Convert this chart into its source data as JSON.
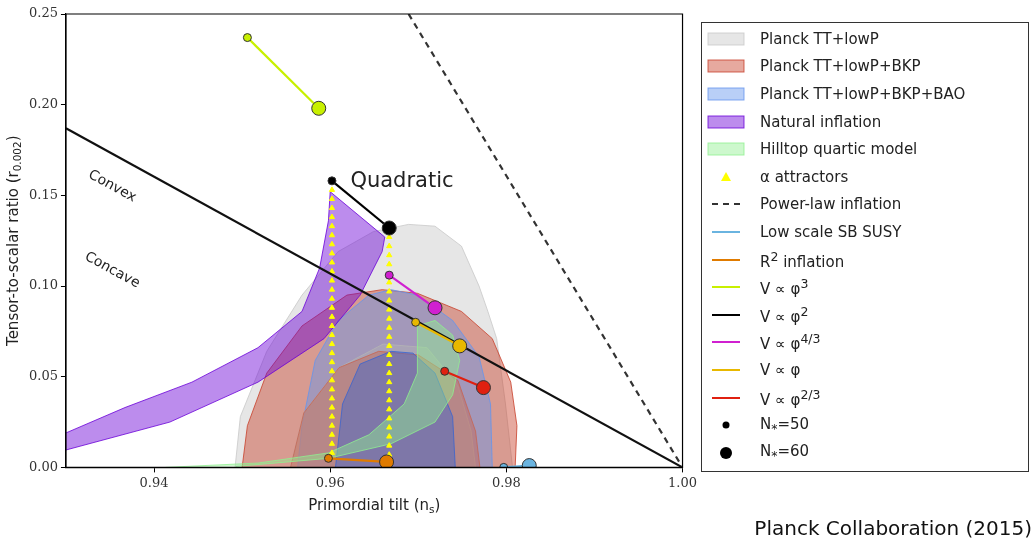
{
  "chart_data": {
    "type": "line",
    "xlabel": "Primordial tilt (n$_{s}$)",
    "ylabel": "Tensor-to-scalar ratio (r$_{0.002}$)",
    "xlim": [
      0.93,
      1.0
    ],
    "xticks": [
      {
        "value": 0.94,
        "label": "0.94"
      },
      {
        "value": 0.96,
        "label": "0.96"
      },
      {
        "value": 0.98,
        "label": "0.98"
      },
      {
        "value": 1.0,
        "label": "1.00"
      }
    ],
    "ylim": [
      0,
      0.25
    ],
    "yticks": [
      {
        "value": 0,
        "label": "0.00"
      },
      {
        "value": 0.05,
        "label": "0.05"
      },
      {
        "value": 0.1,
        "label": "0.10"
      },
      {
        "value": 0.15,
        "label": "0.15"
      },
      {
        "value": 0.2,
        "label": "0.20"
      },
      {
        "value": 0.25,
        "label": "0.25"
      }
    ],
    "grid": false,
    "legend": "right",
    "annotations": [
      "Convex",
      "Concave",
      "Quadratic",
      "N$_{*}$=50",
      "N$_{*}$=60",
      "Planck Collaboration (2015)"
    ],
    "series": [
      {
        "name": "Planck TT+lowP",
        "type": "area",
        "color": "#c8c8c8",
        "x": [
          0.9492,
          0.9498,
          0.9528,
          0.9568,
          0.9609,
          0.9649,
          0.9689,
          0.9719,
          0.9749,
          0.9769,
          0.9779,
          0.9789,
          0.9799,
          0.9807
        ],
        "values": [
          0,
          0.028,
          0.064,
          0.095,
          0.119,
          0.13,
          0.134,
          0.133,
          0.122,
          0.1,
          0.086,
          0.071,
          0.035,
          0
        ]
      },
      {
        "name": "Planck TT+lowP+BKP",
        "type": "area",
        "color": "#c8402a",
        "x": [
          0.95,
          0.9506,
          0.9528,
          0.9568,
          0.9619,
          0.9659,
          0.9699,
          0.9749,
          0.9784,
          0.9805,
          0.9812,
          0.981
        ],
        "values": [
          0,
          0.023,
          0.052,
          0.078,
          0.095,
          0.098,
          0.096,
          0.086,
          0.071,
          0.047,
          0.023,
          0
        ]
      },
      {
        "name": "Planck TT+lowP+BKP+BAO",
        "type": "area",
        "color": "#6495ed",
        "x": [
          0.9563,
          0.9568,
          0.9583,
          0.9609,
          0.9644,
          0.9669,
          0.9699,
          0.9739,
          0.9769,
          0.9782,
          0.9784
        ],
        "values": [
          0,
          0.023,
          0.059,
          0.081,
          0.095,
          0.098,
          0.095,
          0.081,
          0.061,
          0.035,
          0
        ]
      },
      {
        "type": "area",
        "color": "#b4b4b4",
        "x": [
          0.9555,
          0.957,
          0.961,
          0.966,
          0.971,
          0.9745,
          0.976,
          0.9765
        ],
        "values": [
          0,
          0.03,
          0.055,
          0.068,
          0.066,
          0.045,
          0.02,
          0
        ]
      },
      {
        "type": "area",
        "color": "#c86450",
        "x": [
          0.9555,
          0.957,
          0.961,
          0.9655,
          0.97,
          0.9745,
          0.9765,
          0.977
        ],
        "values": [
          0,
          0.03,
          0.055,
          0.064,
          0.062,
          0.048,
          0.02,
          0
        ]
      },
      {
        "type": "area",
        "color": "#3a64d0",
        "x": [
          0.9606,
          0.9614,
          0.9634,
          0.9669,
          0.9694,
          0.9719,
          0.9739,
          0.9742
        ],
        "values": [
          0,
          0.035,
          0.057,
          0.064,
          0.063,
          0.052,
          0.028,
          0
        ]
      },
      {
        "name": "Natural inflation",
        "type": "area",
        "color": "#6a00d8",
        "x": [
          0.93,
          0.9367,
          0.9443,
          0.9518,
          0.9568,
          0.9588,
          0.9598,
          0.96,
          0.9662,
          0.9659,
          0.9634,
          0.9593,
          0.9518,
          0.9418,
          0.93
        ],
        "values": [
          0.019,
          0.033,
          0.047,
          0.066,
          0.086,
          0.11,
          0.136,
          0.152,
          0.127,
          0.119,
          0.095,
          0.071,
          0.047,
          0.025,
          0.0096
        ]
      },
      {
        "name": "Hilltop quartic model",
        "type": "area",
        "color": "#90f090",
        "x": [
          0.9413,
          0.9518,
          0.9598,
          0.9644,
          0.9684,
          0.9699,
          0.9699,
          0.9719,
          0.9739,
          0.9747,
          0.9739,
          0.9719,
          0.9669,
          0.9598,
          0.9493
        ],
        "values": [
          0,
          0.0024,
          0.008,
          0.018,
          0.035,
          0.052,
          0.078,
          0.081,
          0.073,
          0.059,
          0.04,
          0.025,
          0.013,
          0.005,
          0.0005
        ]
      },
      {
        "name": "α attractors",
        "type": "scatter",
        "marker": "triangle",
        "color": "#ffff00",
        "x": [
          0.9602,
          0.9602,
          0.9602,
          0.9602,
          0.9602,
          0.9602,
          0.9602,
          0.9602,
          0.9602,
          0.9602,
          0.9602,
          0.9602,
          0.9602,
          0.9602,
          0.9602,
          0.9602,
          0.9602,
          0.9602,
          0.9602,
          0.9602,
          0.9602,
          0.9602,
          0.9602,
          0.9602,
          0.9602,
          0.9602,
          0.9602,
          0.9602,
          0.9602,
          0.9602,
          0.9667,
          0.9667,
          0.9667,
          0.9667,
          0.9667,
          0.9667,
          0.9667,
          0.9667,
          0.9667,
          0.9667,
          0.9667,
          0.9667,
          0.9667,
          0.9667,
          0.9667,
          0.9667,
          0.9667,
          0.9667,
          0.9667,
          0.9667,
          0.9667,
          0.9667,
          0.9667,
          0.9667
        ],
        "values": [
          0.153,
          0.148,
          0.143,
          0.138,
          0.133,
          0.128,
          0.123,
          0.118,
          0.113,
          0.108,
          0.103,
          0.098,
          0.093,
          0.088,
          0.083,
          0.078,
          0.073,
          0.068,
          0.063,
          0.058,
          0.053,
          0.048,
          0.043,
          0.038,
          0.033,
          0.028,
          0.023,
          0.018,
          0.013,
          0.008,
          0.127,
          0.122,
          0.117,
          0.112,
          0.102,
          0.097,
          0.092,
          0.087,
          0.082,
          0.077,
          0.072,
          0.067,
          0.062,
          0.057,
          0.052,
          0.047,
          0.042,
          0.037,
          0.032,
          0.027,
          0.022,
          0.017,
          0.012,
          0.007
        ]
      },
      {
        "name": "Power-law inflation",
        "line_style": "dashed",
        "color": "#333333",
        "x": [
          0.9689,
          1.0
        ],
        "values": [
          0.25,
          0
        ]
      },
      {
        "name": "Low scale SB SUSY",
        "marker": "circle",
        "color": "#6ab4e0",
        "x": [
          0.9797,
          0.9826
        ],
        "values": [
          0,
          0.001
        ]
      },
      {
        "name": "R$^{2}$ inflation",
        "marker": "circle",
        "color": "#e07b00",
        "x": [
          0.9598,
          0.9664
        ],
        "values": [
          0.005,
          0.003
        ]
      },
      {
        "name": "V ∝ φ$^{3}$",
        "marker": "circle",
        "color": "#c8f000",
        "x": [
          0.9506,
          0.9587
        ],
        "values": [
          0.237,
          0.198
        ]
      },
      {
        "name": "V ∝ φ$^{2}$",
        "marker": "circle",
        "color": "#000000",
        "x": [
          0.9602,
          0.9667
        ],
        "values": [
          0.158,
          0.132
        ]
      },
      {
        "name": "V ∝ φ$^{4/3}$",
        "marker": "circle",
        "color": "#d020d0",
        "x": [
          0.9667,
          0.9719
        ],
        "values": [
          0.106,
          0.088
        ]
      },
      {
        "name": "V ∝ φ",
        "marker": "circle",
        "color": "#e8b800",
        "x": [
          0.9697,
          0.9747
        ],
        "values": [
          0.08,
          0.067
        ]
      },
      {
        "name": "V ∝ φ$^{2/3}$",
        "marker": "circle",
        "color": "#e02010",
        "x": [
          0.973,
          0.9774
        ],
        "values": [
          0.053,
          0.044
        ]
      },
      {
        "color": "#111111",
        "x": [
          0.93,
          1.0
        ],
        "values": [
          0.187,
          0
        ]
      }
    ]
  }
}
